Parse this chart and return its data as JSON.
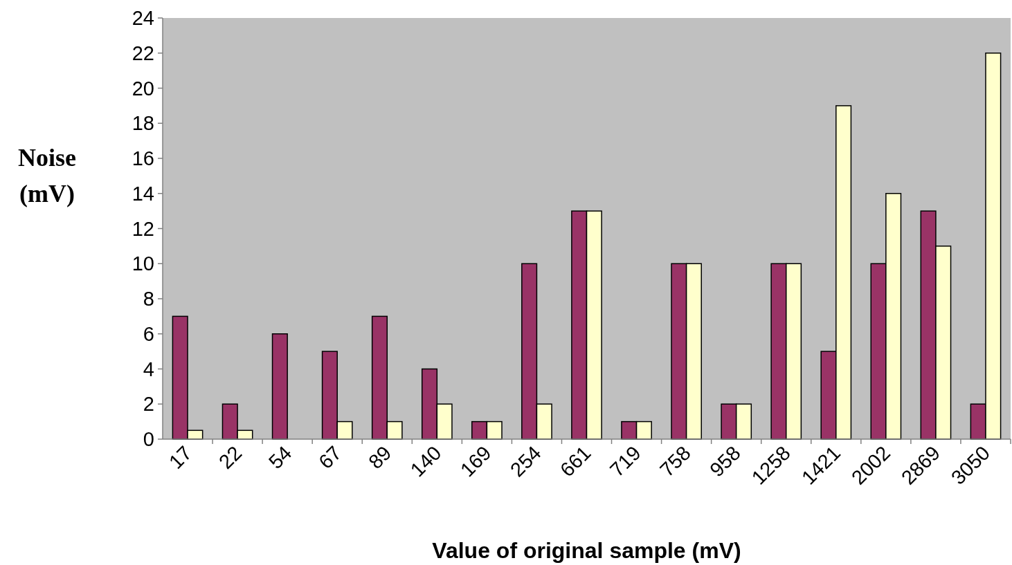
{
  "chart_data": {
    "type": "bar",
    "xlabel": "Value of original sample (mV)",
    "ylabel": "Noise (mV)",
    "categories": [
      "17",
      "22",
      "54",
      "67",
      "89",
      "140",
      "169",
      "254",
      "661",
      "719",
      "758",
      "958",
      "1258",
      "1421",
      "2002",
      "2869",
      "3050"
    ],
    "series": [
      {
        "color": "#993366",
        "values": [
          7,
          2,
          6,
          5,
          7,
          4,
          1,
          10,
          13,
          1,
          10,
          2,
          10,
          5,
          10,
          13,
          2
        ]
      },
      {
        "color": "#ffffcc",
        "values": [
          0.5,
          0.5,
          0,
          1,
          1,
          2,
          1,
          2,
          13,
          1,
          10,
          2,
          10,
          19,
          14,
          11,
          22
        ]
      }
    ],
    "ylim": [
      0,
      24
    ],
    "yticks": [
      0,
      2,
      4,
      6,
      8,
      10,
      12,
      14,
      16,
      18,
      20,
      22,
      24
    ],
    "grid": false
  }
}
